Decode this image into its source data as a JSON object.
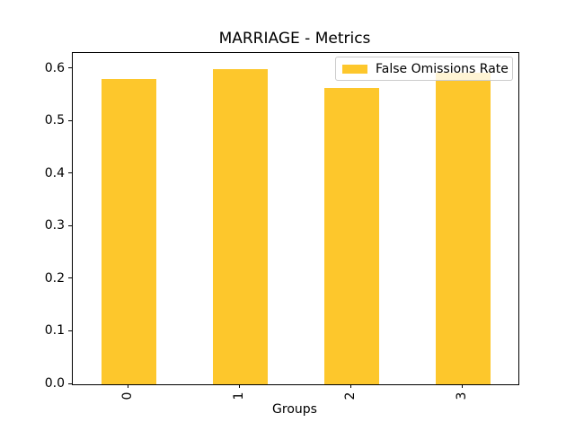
{
  "chart_data": {
    "type": "bar",
    "title": "MARRIAGE - Metrics",
    "categories": [
      "0",
      "1",
      "2",
      "3"
    ],
    "series": [
      {
        "name": "False Omissions Rate",
        "color": "#FDC72C",
        "values": [
          0.58,
          0.6,
          0.563,
          0.592
        ]
      }
    ],
    "xlabel": "Groups",
    "ylabel": "",
    "ylim": [
      0,
      0.63
    ],
    "yticks": [
      0.0,
      0.1,
      0.2,
      0.3,
      0.4,
      0.5,
      0.6
    ],
    "ytick_labels": [
      "0.0",
      "0.1",
      "0.2",
      "0.3",
      "0.4",
      "0.5",
      "0.6"
    ],
    "grid": false,
    "legend_position": "upper right"
  },
  "legend": {
    "label": "False Omissions Rate"
  },
  "colors": {
    "bar": "#FDC72C",
    "legend_border": "#CCCCCC",
    "spine": "#000000",
    "background": "#FFFFFF"
  }
}
